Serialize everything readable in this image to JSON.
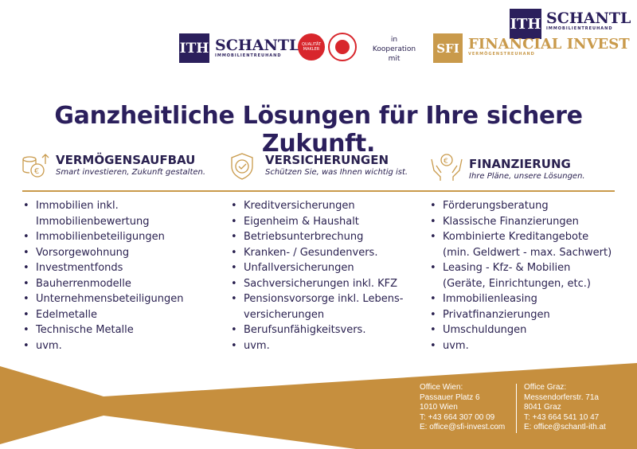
{
  "logos": {
    "schantl_top": {
      "mark": "ITH",
      "name": "SCHANTL",
      "sub": "IMMOBILIENTREUHAND"
    },
    "schantl": {
      "mark": "ITH",
      "name": "SCHANTL",
      "sub": "IMMOBILIENTREUHAND"
    },
    "badge1": "QUALITÄT MAKLER",
    "coop": [
      "in",
      "Kooperation",
      "mit"
    ],
    "sfi": {
      "mark": "SFI",
      "name": "FINANCIAL INVEST",
      "sub": "VERMÖGENSTREUHAND"
    }
  },
  "headline": "Ganzheitliche Lösungen für Ihre sichere Zukunft.",
  "columns": [
    {
      "icon": "coins-euro-icon",
      "title": "VERMÖGENSAUFBAU",
      "tagline": "Smart investieren, Zukunft gestalten.",
      "items": [
        [
          "Immobilien inkl.",
          true
        ],
        [
          "Immobilienbewertung",
          false
        ],
        [
          "Immobilienbeteiligungen",
          true
        ],
        [
          "Vorsorgewohnung",
          true
        ],
        [
          "Investmentfonds",
          true
        ],
        [
          "Bauherrenmodelle",
          true
        ],
        [
          "Unternehmensbeteiligungen",
          true
        ],
        [
          "Edelmetalle",
          true
        ],
        [
          "Technische Metalle",
          true
        ],
        [
          "uvm.",
          true
        ]
      ]
    },
    {
      "icon": "shield-check-icon",
      "title": "VERSICHERUNGEN",
      "tagline": "Schützen Sie, was Ihnen wichtig ist.",
      "items": [
        [
          "Kreditversicherungen",
          true
        ],
        [
          "Eigenheim & Haushalt",
          true
        ],
        [
          "Betriebsunterbrechung",
          true
        ],
        [
          "Kranken- / Gesundenvers.",
          true
        ],
        [
          "Unfallversicherungen",
          true
        ],
        [
          "Sachversicherungen inkl. KFZ",
          true
        ],
        [
          "Pensionsvorsorge inkl. Lebens-",
          true
        ],
        [
          "versicherungen",
          false
        ],
        [
          "Berufsunfähigkeitsvers.",
          true
        ],
        [
          "uvm.",
          true
        ]
      ]
    },
    {
      "icon": "hands-coin-icon",
      "title": "FINANZIERUNG",
      "tagline": "Ihre Pläne, unsere Lösungen.",
      "items": [
        [
          "Förderungsberatung",
          true
        ],
        [
          "Klassische Finanzierungen",
          true
        ],
        [
          "Kombinierte Kreditangebote",
          true
        ],
        [
          "(min. Geldwert - max. Sachwert)",
          false
        ],
        [
          "Leasing - Kfz- & Mobilien",
          true
        ],
        [
          "(Geräte, Einrichtungen, etc.)",
          false
        ],
        [
          "Immobilienleasing",
          true
        ],
        [
          "Privatfinanzierungen",
          true
        ],
        [
          "Umschuldungen",
          true
        ],
        [
          "uvm.",
          true
        ]
      ]
    }
  ],
  "offices": [
    [
      "Office Wien:",
      "Passauer Platz 6",
      "1010 Wien",
      "T: +43 664 307 00 09",
      "E: office@sfi-invest.com"
    ],
    [
      "Office Graz:",
      "Messendorferstr. 71a",
      "8041 Graz",
      "T: +43 664 541 10 47",
      "E: office@schantl-ith.at"
    ]
  ],
  "colors": {
    "navy": "#2b1f5c",
    "gold": "#c99a4b",
    "red": "#d8262c"
  }
}
